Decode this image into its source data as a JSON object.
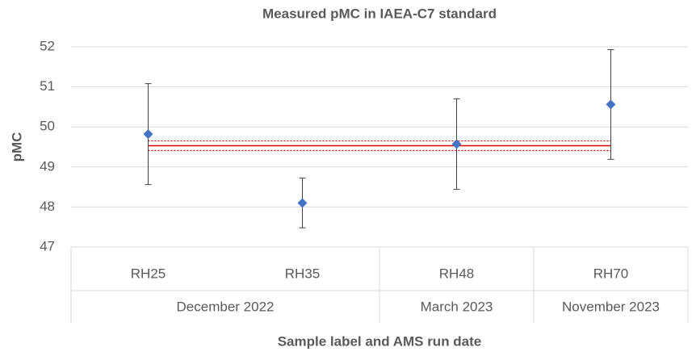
{
  "chart_data": {
    "type": "scatter",
    "title": "Measured pMC in IAEA-C7 standard",
    "x_label": "Sample label and AMS run date",
    "y_label": "pMC",
    "categories": [
      "RH25",
      "RH35",
      "RH48",
      "RH70"
    ],
    "groups": [
      {
        "name": "December 2022",
        "count": 2
      },
      {
        "name": "March 2023",
        "count": 1
      },
      {
        "name": "November 2023",
        "count": 1
      }
    ],
    "series": [
      {
        "name": "pMC",
        "color": "#4472c4",
        "values": [
          49.82,
          48.1,
          49.57,
          50.56
        ],
        "errors": [
          1.26,
          0.62,
          1.13,
          1.37
        ]
      }
    ],
    "reference": {
      "value": 49.53,
      "error": 0.12,
      "color": "#e00000"
    },
    "ylim": [
      47,
      52
    ],
    "yticks": [
      47,
      48,
      49,
      50,
      51,
      52
    ],
    "grid": true
  }
}
